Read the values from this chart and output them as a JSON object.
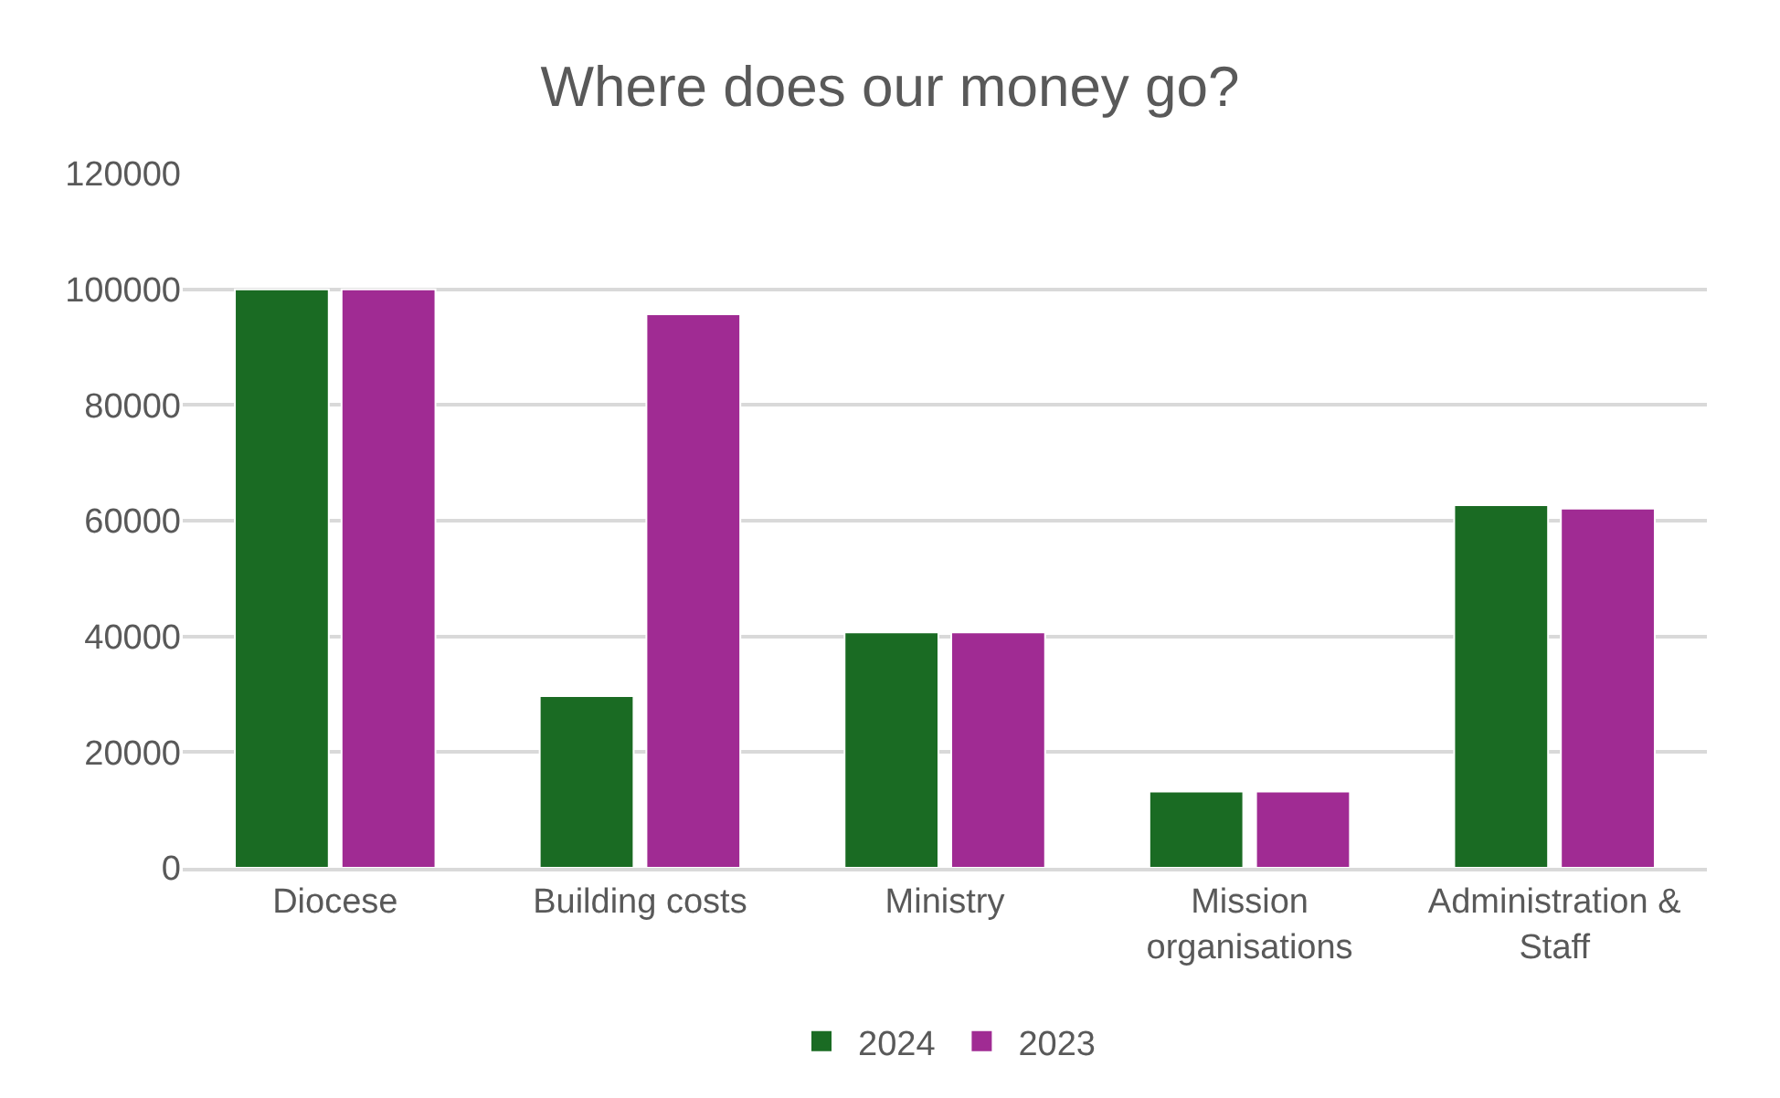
{
  "chart_data": {
    "type": "bar",
    "title": "Where does our money go?",
    "categories": [
      "Diocese",
      "Building costs",
      "Ministry",
      "Mission organisations",
      "Administration & Staff"
    ],
    "series": [
      {
        "name": "2024",
        "color": "#1a6b23",
        "values": [
          100000,
          29700,
          40700,
          13200,
          62700
        ]
      },
      {
        "name": "2023",
        "color": "#a02b93",
        "values": [
          100000,
          95700,
          40700,
          13200,
          62100
        ]
      }
    ],
    "ylim": [
      0,
      120000
    ],
    "yticks": [
      0,
      20000,
      40000,
      60000,
      80000,
      100000,
      120000
    ],
    "grid": "y",
    "legend": "bottom"
  }
}
